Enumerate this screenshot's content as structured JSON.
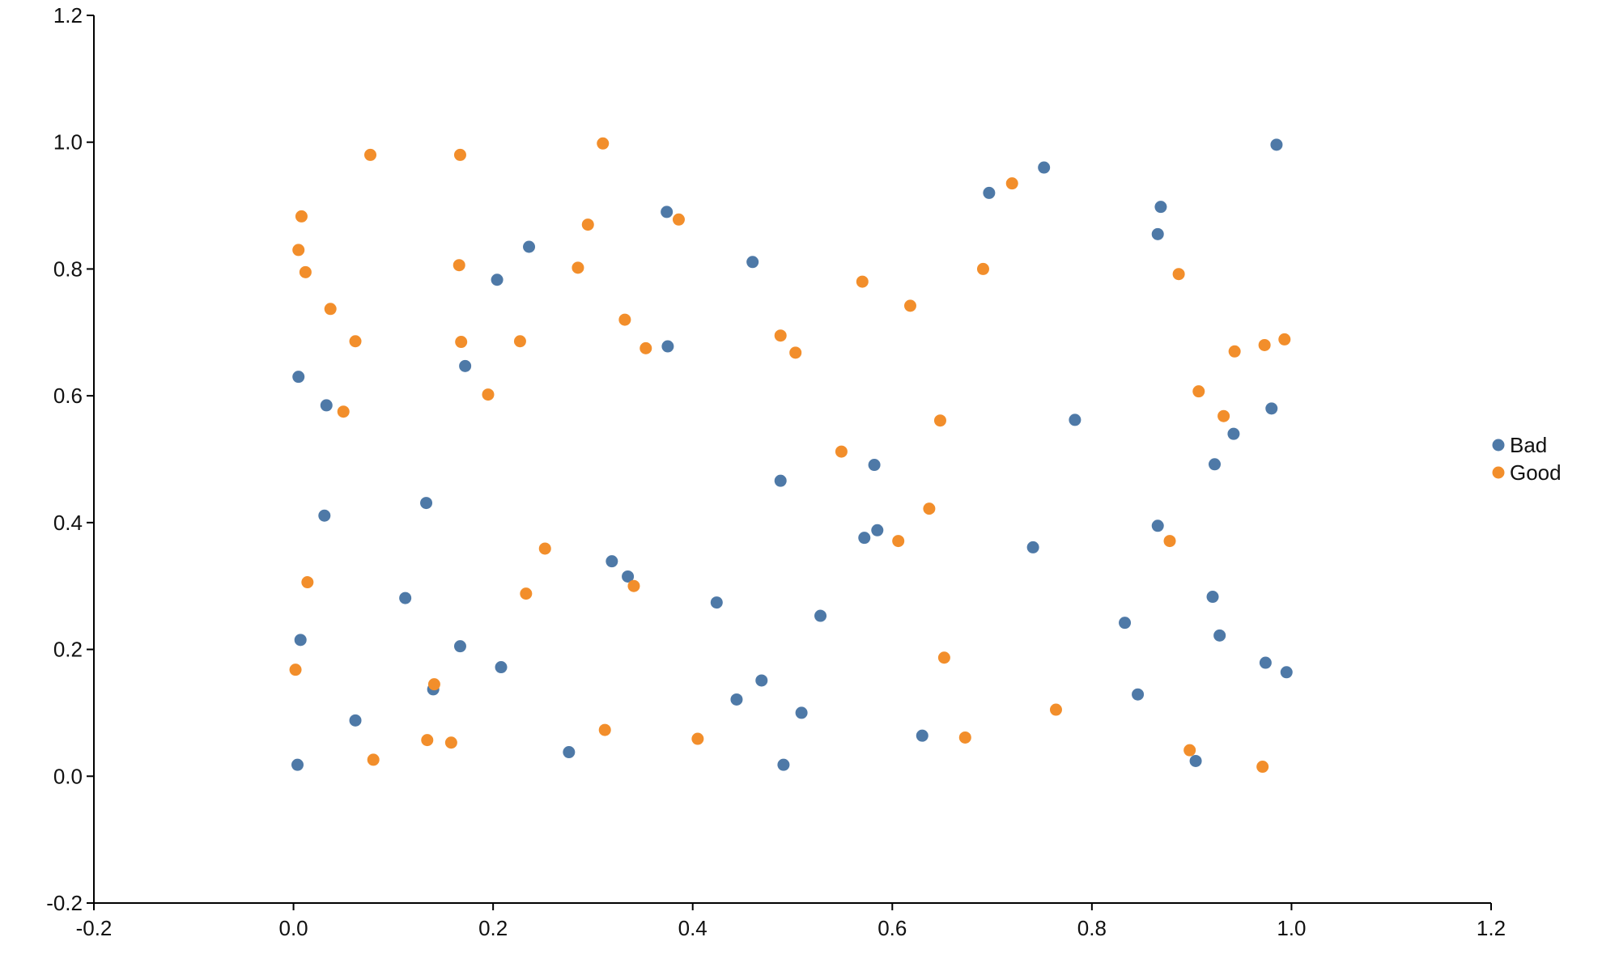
{
  "chart_data": {
    "type": "scatter",
    "title": "",
    "xlabel": "",
    "ylabel": "",
    "xlim": [
      -0.2,
      1.2
    ],
    "ylim": [
      -0.2,
      1.2
    ],
    "x_ticks": [
      -0.2,
      0.0,
      0.2,
      0.4,
      0.6,
      0.8,
      1.0,
      1.2
    ],
    "y_ticks": [
      -0.2,
      0.0,
      0.2,
      0.4,
      0.6,
      0.8,
      1.0,
      1.2
    ],
    "x_tick_labels": [
      "-0.2",
      "0.0",
      "0.2",
      "0.4",
      "0.6",
      "0.8",
      "1.0",
      "1.2"
    ],
    "y_tick_labels": [
      "-0.2",
      "0.0",
      "0.2",
      "0.4",
      "0.6",
      "0.8",
      "1.0",
      "1.2"
    ],
    "grid": false,
    "legend_position": "right",
    "series": [
      {
        "name": "Bad",
        "color": "#4e79a7",
        "points": [
          [
            0.005,
            0.63
          ],
          [
            0.007,
            0.215
          ],
          [
            0.004,
            0.018
          ],
          [
            0.033,
            0.585
          ],
          [
            0.031,
            0.411
          ],
          [
            0.062,
            0.088
          ],
          [
            0.112,
            0.281
          ],
          [
            0.133,
            0.431
          ],
          [
            0.14,
            0.137
          ],
          [
            0.167,
            0.205
          ],
          [
            0.172,
            0.647
          ],
          [
            0.204,
            0.783
          ],
          [
            0.208,
            0.172
          ],
          [
            0.236,
            0.835
          ],
          [
            0.276,
            0.038
          ],
          [
            0.319,
            0.339
          ],
          [
            0.335,
            0.315
          ],
          [
            0.374,
            0.89
          ],
          [
            0.375,
            0.678
          ],
          [
            0.424,
            0.274
          ],
          [
            0.444,
            0.121
          ],
          [
            0.46,
            0.811
          ],
          [
            0.469,
            0.151
          ],
          [
            0.488,
            0.466
          ],
          [
            0.491,
            0.018
          ],
          [
            0.509,
            0.1
          ],
          [
            0.528,
            0.253
          ],
          [
            0.572,
            0.376
          ],
          [
            0.582,
            0.491
          ],
          [
            0.585,
            0.388
          ],
          [
            0.63,
            0.064
          ],
          [
            0.697,
            0.92
          ],
          [
            0.741,
            0.361
          ],
          [
            0.752,
            0.96
          ],
          [
            0.783,
            0.562
          ],
          [
            0.833,
            0.242
          ],
          [
            0.846,
            0.129
          ],
          [
            0.866,
            0.855
          ],
          [
            0.869,
            0.898
          ],
          [
            0.866,
            0.395
          ],
          [
            0.904,
            0.024
          ],
          [
            0.921,
            0.283
          ],
          [
            0.923,
            0.492
          ],
          [
            0.928,
            0.222
          ],
          [
            0.942,
            0.54
          ],
          [
            0.974,
            0.179
          ],
          [
            0.98,
            0.58
          ],
          [
            0.985,
            0.996
          ],
          [
            0.995,
            0.164
          ]
        ]
      },
      {
        "name": "Good",
        "color": "#f28e2b",
        "points": [
          [
            0.002,
            0.168
          ],
          [
            0.005,
            0.83
          ],
          [
            0.008,
            0.883
          ],
          [
            0.012,
            0.795
          ],
          [
            0.014,
            0.306
          ],
          [
            0.037,
            0.737
          ],
          [
            0.05,
            0.575
          ],
          [
            0.062,
            0.686
          ],
          [
            0.077,
            0.98
          ],
          [
            0.08,
            0.026
          ],
          [
            0.134,
            0.057
          ],
          [
            0.141,
            0.145
          ],
          [
            0.158,
            0.053
          ],
          [
            0.166,
            0.806
          ],
          [
            0.167,
            0.98
          ],
          [
            0.168,
            0.685
          ],
          [
            0.195,
            0.602
          ],
          [
            0.227,
            0.686
          ],
          [
            0.233,
            0.288
          ],
          [
            0.252,
            0.359
          ],
          [
            0.285,
            0.802
          ],
          [
            0.295,
            0.87
          ],
          [
            0.31,
            0.998
          ],
          [
            0.312,
            0.073
          ],
          [
            0.332,
            0.72
          ],
          [
            0.341,
            0.3
          ],
          [
            0.353,
            0.675
          ],
          [
            0.386,
            0.878
          ],
          [
            0.405,
            0.059
          ],
          [
            0.488,
            0.695
          ],
          [
            0.503,
            0.668
          ],
          [
            0.549,
            0.512
          ],
          [
            0.57,
            0.78
          ],
          [
            0.606,
            0.371
          ],
          [
            0.618,
            0.742
          ],
          [
            0.637,
            0.422
          ],
          [
            0.648,
            0.561
          ],
          [
            0.652,
            0.187
          ],
          [
            0.673,
            0.061
          ],
          [
            0.691,
            0.8
          ],
          [
            0.72,
            0.935
          ],
          [
            0.764,
            0.105
          ],
          [
            0.878,
            0.371
          ],
          [
            0.887,
            0.792
          ],
          [
            0.898,
            0.041
          ],
          [
            0.907,
            0.607
          ],
          [
            0.932,
            0.568
          ],
          [
            0.943,
            0.67
          ],
          [
            0.971,
            0.015
          ],
          [
            0.973,
            0.68
          ],
          [
            0.993,
            0.689
          ]
        ]
      }
    ]
  }
}
